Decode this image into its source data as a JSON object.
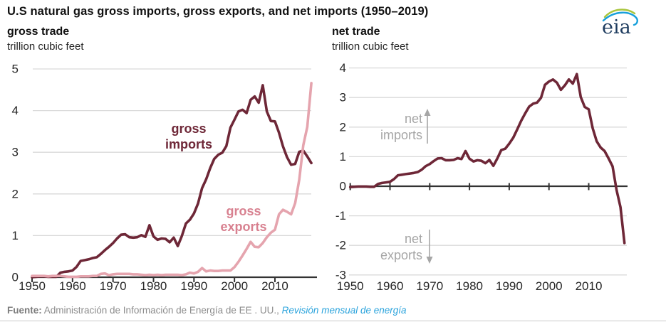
{
  "title": "U.S natural gas gross imports, gross exports, and net imports (1950–2019)",
  "logo": {
    "text": "eia"
  },
  "footer": {
    "source_label": "Fuente:",
    "source_text": " Administración de Información de Energía de EE . UU., ",
    "link_text": "Revisión mensual de energía"
  },
  "colors": {
    "maroon": "#6e2737",
    "pink_line": "#e5a4ae",
    "pink_label": "#d88190",
    "annotation_gray": "#a6a6a6",
    "axis_dark": "#333333",
    "gridline": "#d9d9d9",
    "tick_text": "#262626",
    "link_blue": "#2aa3dc"
  },
  "chart_data": [
    {
      "id": "gross-trade",
      "type": "line",
      "title": "gross trade",
      "ylabel": "trillion cubic feet",
      "xlim": [
        1950,
        2019
      ],
      "ylim": [
        0,
        5
      ],
      "yticks": [
        5,
        4,
        3,
        2,
        1,
        0
      ],
      "xticks": [
        1950,
        1960,
        1970,
        1980,
        1990,
        2000,
        2010
      ],
      "grid": true,
      "x": [
        1950,
        1951,
        1952,
        1953,
        1954,
        1955,
        1956,
        1957,
        1958,
        1959,
        1960,
        1961,
        1962,
        1963,
        1964,
        1965,
        1966,
        1967,
        1968,
        1969,
        1970,
        1971,
        1972,
        1973,
        1974,
        1975,
        1976,
        1977,
        1978,
        1979,
        1980,
        1981,
        1982,
        1983,
        1984,
        1985,
        1986,
        1987,
        1988,
        1989,
        1990,
        1991,
        1992,
        1993,
        1994,
        1995,
        1996,
        1997,
        1998,
        1999,
        2000,
        2001,
        2002,
        2003,
        2004,
        2005,
        2006,
        2007,
        2008,
        2009,
        2010,
        2011,
        2012,
        2013,
        2014,
        2015,
        2016,
        2017,
        2018,
        2019
      ],
      "series": [
        {
          "name": "gross imports",
          "color_key": "maroon",
          "values": [
            0.0,
            0.01,
            0.02,
            0.02,
            0.01,
            0.01,
            0.01,
            0.11,
            0.13,
            0.14,
            0.16,
            0.25,
            0.39,
            0.41,
            0.43,
            0.46,
            0.48,
            0.56,
            0.65,
            0.73,
            0.82,
            0.93,
            1.02,
            1.03,
            0.96,
            0.95,
            0.96,
            1.01,
            0.97,
            1.25,
            0.98,
            0.9,
            0.93,
            0.92,
            0.84,
            0.95,
            0.75,
            0.99,
            1.29,
            1.38,
            1.53,
            1.77,
            2.14,
            2.35,
            2.62,
            2.84,
            2.94,
            2.99,
            3.15,
            3.59,
            3.78,
            3.98,
            4.02,
            3.94,
            4.26,
            4.34,
            4.19,
            4.61,
            3.98,
            3.75,
            3.74,
            3.47,
            3.14,
            2.88,
            2.7,
            2.72,
            3.01,
            3.04,
            2.9,
            2.74
          ]
        },
        {
          "name": "gross exports",
          "color_key": "pink_line",
          "values": [
            0.03,
            0.03,
            0.03,
            0.03,
            0.02,
            0.03,
            0.03,
            0.03,
            0.02,
            0.01,
            0.01,
            0.01,
            0.02,
            0.02,
            0.02,
            0.03,
            0.03,
            0.08,
            0.09,
            0.05,
            0.07,
            0.08,
            0.08,
            0.08,
            0.08,
            0.07,
            0.07,
            0.06,
            0.05,
            0.06,
            0.05,
            0.06,
            0.05,
            0.06,
            0.06,
            0.06,
            0.06,
            0.05,
            0.07,
            0.11,
            0.09,
            0.13,
            0.22,
            0.14,
            0.16,
            0.15,
            0.15,
            0.16,
            0.16,
            0.16,
            0.24,
            0.37,
            0.52,
            0.68,
            0.85,
            0.73,
            0.72,
            0.82,
            0.96,
            1.07,
            1.14,
            1.51,
            1.62,
            1.57,
            1.51,
            1.78,
            2.34,
            3.17,
            3.61,
            4.66
          ]
        }
      ],
      "annotations": [
        {
          "lines": [
            "gross",
            "imports"
          ],
          "color_key": "maroon"
        },
        {
          "lines": [
            "gross",
            "exports"
          ],
          "color_key": "pink_label"
        }
      ]
    },
    {
      "id": "net-trade",
      "type": "line",
      "title": "net trade",
      "ylabel": "trillion cubic feet",
      "xlim": [
        1950,
        2019
      ],
      "ylim": [
        -3,
        4
      ],
      "yticks": [
        4,
        3,
        2,
        1,
        0,
        -1,
        -2,
        -3
      ],
      "xticks": [
        1950,
        1960,
        1970,
        1980,
        1990,
        2000,
        2010
      ],
      "grid": true,
      "x": [
        1950,
        1951,
        1952,
        1953,
        1954,
        1955,
        1956,
        1957,
        1958,
        1959,
        1960,
        1961,
        1962,
        1963,
        1964,
        1965,
        1966,
        1967,
        1968,
        1969,
        1970,
        1971,
        1972,
        1973,
        1974,
        1975,
        1976,
        1977,
        1978,
        1979,
        1980,
        1981,
        1982,
        1983,
        1984,
        1985,
        1986,
        1987,
        1988,
        1989,
        1990,
        1991,
        1992,
        1993,
        1994,
        1995,
        1996,
        1997,
        1998,
        1999,
        2000,
        2001,
        2002,
        2003,
        2004,
        2005,
        2006,
        2007,
        2008,
        2009,
        2010,
        2011,
        2012,
        2013,
        2014,
        2015,
        2016,
        2017,
        2018,
        2019
      ],
      "series": [
        {
          "name": "net imports",
          "color_key": "maroon",
          "values": [
            -0.03,
            -0.02,
            -0.01,
            -0.01,
            -0.01,
            -0.02,
            -0.02,
            0.08,
            0.11,
            0.13,
            0.15,
            0.24,
            0.37,
            0.39,
            0.41,
            0.43,
            0.45,
            0.48,
            0.56,
            0.68,
            0.75,
            0.85,
            0.94,
            0.95,
            0.88,
            0.88,
            0.89,
            0.95,
            0.92,
            1.19,
            0.93,
            0.84,
            0.88,
            0.86,
            0.78,
            0.89,
            0.69,
            0.94,
            1.22,
            1.27,
            1.44,
            1.64,
            1.92,
            2.21,
            2.46,
            2.69,
            2.79,
            2.83,
            2.99,
            3.43,
            3.54,
            3.61,
            3.5,
            3.26,
            3.41,
            3.61,
            3.47,
            3.79,
            3.02,
            2.68,
            2.6,
            1.96,
            1.52,
            1.31,
            1.19,
            0.94,
            0.67,
            -0.13,
            -0.71,
            -1.92
          ]
        }
      ],
      "annotations": [
        {
          "lines": [
            "net",
            "imports"
          ],
          "color_key": "annotation_gray",
          "arrow": "up"
        },
        {
          "lines": [
            "net",
            "exports"
          ],
          "color_key": "annotation_gray",
          "arrow": "down"
        }
      ]
    }
  ]
}
